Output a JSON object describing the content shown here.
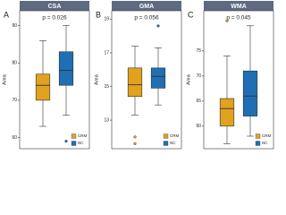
{
  "chart_data": [
    {
      "type": "box",
      "title": "CSA",
      "label": "A",
      "annotation": "p = 0.026",
      "ylabel": "Area",
      "ylim": [
        57,
        94
      ],
      "yticks": [
        60,
        70,
        80,
        90
      ],
      "legend": "bottom-right",
      "series": [
        {
          "name": "CRM",
          "color": "#e0a21f",
          "whisker_low": 63,
          "q1": 70,
          "median": 74,
          "q3": 77,
          "whisker_high": 86,
          "outliers": []
        },
        {
          "name": "NC",
          "color": "#1f6fb4",
          "whisker_low": 66,
          "q1": 74,
          "median": 78,
          "q3": 83,
          "whisker_high": 90,
          "outliers": [
            59
          ]
        }
      ]
    },
    {
      "type": "box",
      "title": "GMA",
      "label": "B",
      "annotation": "p = 0.056",
      "ylabel": "Area",
      "ylim": [
        11.3,
        19.5
      ],
      "yticks": [
        13,
        15,
        17,
        19
      ],
      "legend": "bottom-right",
      "series": [
        {
          "name": "CRM",
          "color": "#e0a21f",
          "whisker_low": 13.3,
          "q1": 14.4,
          "median": 15.1,
          "q3": 16.1,
          "whisker_high": 17.4,
          "outliers": [
            12,
            11.6
          ]
        },
        {
          "name": "NC",
          "color": "#1f6fb4",
          "whisker_low": 13.9,
          "q1": 14.9,
          "median": 15.6,
          "q3": 16.1,
          "whisker_high": 17.3,
          "outliers": [
            18.6
          ]
        }
      ]
    },
    {
      "type": "box",
      "title": "WMA",
      "label": "C",
      "annotation": "p = 0.045",
      "ylabel": "Area",
      "ylim": [
        55.5,
        83
      ],
      "yticks": [
        60,
        65,
        70,
        75
      ],
      "legend": "bottom-right",
      "series": [
        {
          "name": "CRM",
          "color": "#e0a21f",
          "whisker_low": 56.5,
          "q1": 60,
          "median": 63.5,
          "q3": 65.5,
          "whisker_high": 74,
          "outliers": [
            81
          ]
        },
        {
          "name": "NC",
          "color": "#1f6fb4",
          "whisker_low": 58,
          "q1": 62,
          "median": 66,
          "q3": 71,
          "whisker_high": 80,
          "outliers": []
        }
      ]
    }
  ]
}
